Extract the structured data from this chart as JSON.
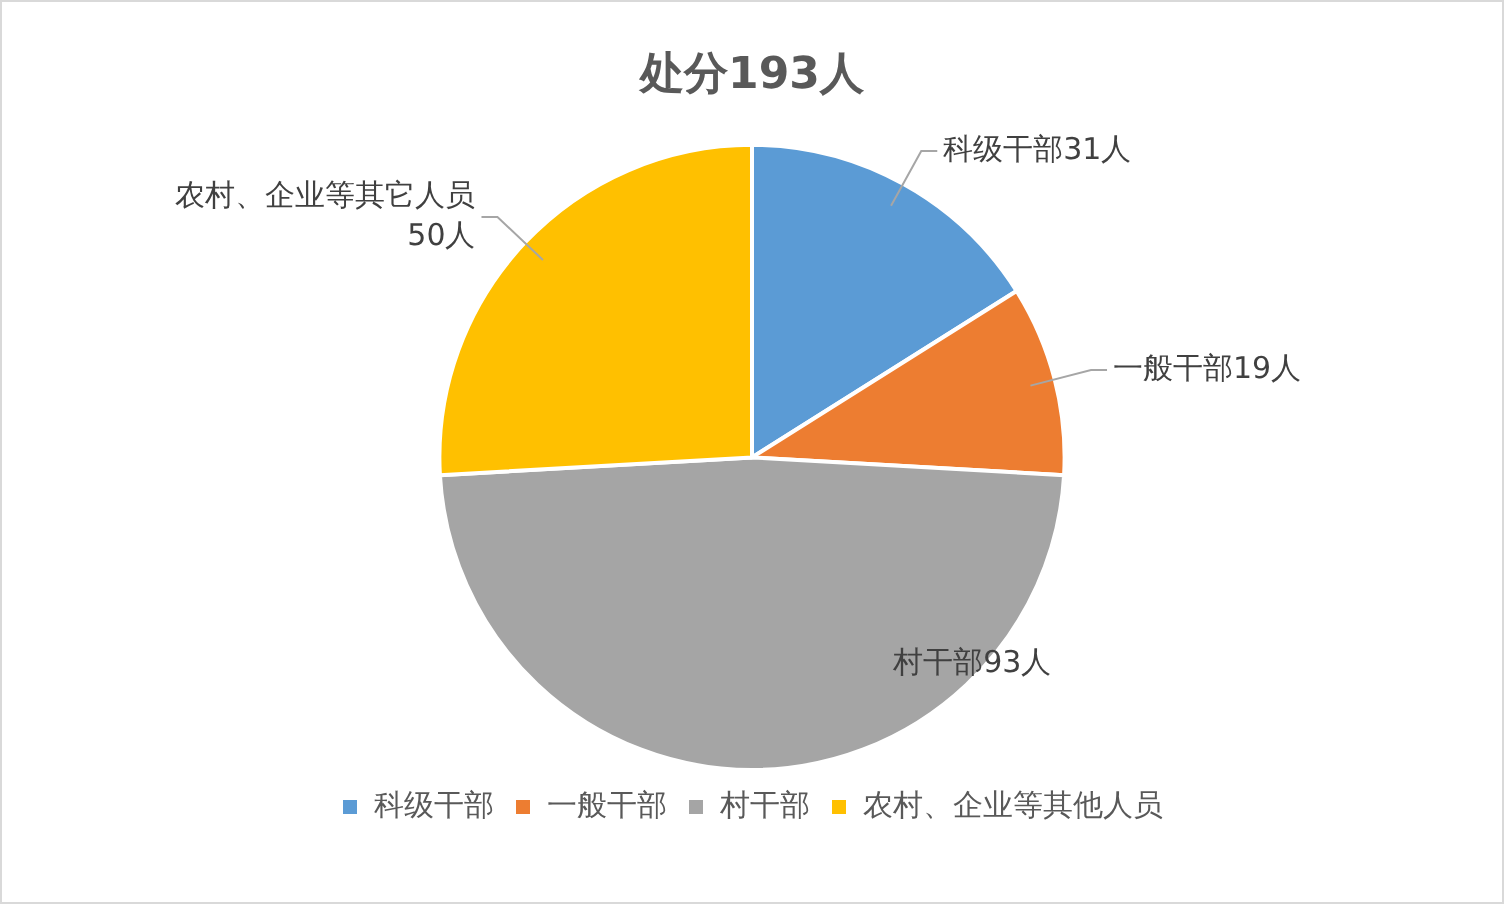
{
  "chart_data": {
    "type": "pie",
    "title": "处分193人",
    "categories": [
      "科级干部",
      "一般干部",
      "村干部",
      "农村、企业等其他人员"
    ],
    "values": [
      31,
      19,
      93,
      50
    ],
    "colors": [
      "#5b9bd5",
      "#ed7d31",
      "#a5a5a5",
      "#ffc000"
    ],
    "value_labels": [
      "科级干部31人",
      "一般干部19人",
      "村干部93人",
      "农村、企业等其它人员50人"
    ],
    "legend": "bottom"
  }
}
